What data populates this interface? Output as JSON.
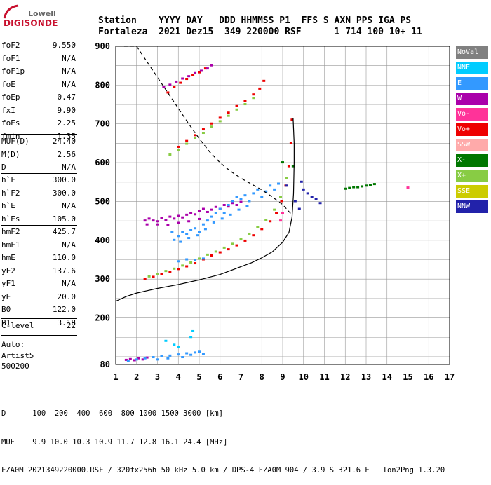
{
  "logo": {
    "line1": "Lowell",
    "line2": "DIGISONDE"
  },
  "header": {
    "line1": "Station    YYYY DAY   DDD HHMMSS P1  FFS S AXN PPS IGA PS",
    "line2": "Fortaleza  2021 Dez15  349 220000 RSF      1 714 100 10+ 11"
  },
  "params_group1": [
    {
      "label": "foF2",
      "value": "9.550"
    },
    {
      "label": "foF1",
      "value": "N/A"
    },
    {
      "label": "foF1p",
      "value": "N/A"
    },
    {
      "label": "foE",
      "value": "N/A"
    },
    {
      "label": "foEp",
      "value": "0.47"
    },
    {
      "label": "fxI",
      "value": "9.90"
    },
    {
      "label": "foEs",
      "value": "2.25"
    },
    {
      "label": "fmin",
      "value": "1.35"
    }
  ],
  "params_group2": [
    {
      "label": "MUF(D)",
      "value": "24.40"
    },
    {
      "label": "M(D)",
      "value": "2.56"
    },
    {
      "label": "D",
      "value": "N/A"
    }
  ],
  "params_group3": [
    {
      "label": "h`F",
      "value": "300.0"
    },
    {
      "label": "h`F2",
      "value": "300.0"
    },
    {
      "label": "h`E",
      "value": "N/A"
    },
    {
      "label": "h`Es",
      "value": "105.0"
    }
  ],
  "params_group4": [
    {
      "label": "hmF2",
      "value": "425.7"
    },
    {
      "label": "hmF1",
      "value": "N/A"
    },
    {
      "label": "hmE",
      "value": "110.0"
    },
    {
      "label": "yF2",
      "value": "137.6"
    },
    {
      "label": "yF1",
      "value": "N/A"
    },
    {
      "label": "yE",
      "value": "20.0"
    },
    {
      "label": "B0",
      "value": "122.0"
    },
    {
      "label": "B1",
      "value": "3.18"
    }
  ],
  "params_group5": [
    {
      "label": "C-level",
      "value": "22"
    }
  ],
  "auto": {
    "line1": "Auto:",
    "line2": "Artist5",
    "line3": "500200"
  },
  "legend": [
    {
      "label": "NoVal",
      "color": "#808080"
    },
    {
      "label": "NNE",
      "color": "#00ccff"
    },
    {
      "label": "E",
      "color": "#3399ff"
    },
    {
      "label": "W",
      "color": "#aa00aa"
    },
    {
      "label": "Vo-",
      "color": "#ff3399"
    },
    {
      "label": "Vo+",
      "color": "#ee0000"
    },
    {
      "label": "SSW",
      "color": "#ffaaaa"
    },
    {
      "label": "X-",
      "color": "#007700"
    },
    {
      "label": "X+",
      "color": "#88cc44"
    },
    {
      "label": "SSE",
      "color": "#cccc00"
    },
    {
      "label": "NNW",
      "color": "#2222aa"
    }
  ],
  "footer": {
    "line1": "D      100  200  400  600  800 1000 1500 3000 [km]",
    "line2": "MUF    9.9 10.0 10.3 10.9 11.7 12.8 16.1 24.4 [MHz]",
    "line3": "FZA0M_2021349220000.RSF / 320fx256h 50 kHz 5.0 km / DPS-4 FZA0M 904 / 3.9 S 321.6 E   Ion2Png 1.3.20"
  },
  "chart_data": {
    "type": "scatter",
    "xlim": [
      1,
      17
    ],
    "ylim": [
      80,
      900
    ],
    "x_ticks": [
      "1",
      "2",
      "3",
      "4",
      "5",
      "6",
      "7",
      "8",
      "9",
      "10",
      "11",
      "12",
      "13",
      "14",
      "15",
      "16",
      "17"
    ],
    "y_ticks": [
      "80",
      "200",
      "300",
      "400",
      "500",
      "600",
      "700",
      "800",
      "900"
    ],
    "grid": true,
    "series": [
      {
        "name": "Vo+",
        "color": "#ee0000",
        "points": [
          [
            2.4,
            300
          ],
          [
            2.8,
            305
          ],
          [
            3.2,
            312
          ],
          [
            3.6,
            318
          ],
          [
            4.0,
            325
          ],
          [
            4.4,
            332
          ],
          [
            4.8,
            340
          ],
          [
            5.2,
            350
          ],
          [
            5.6,
            360
          ],
          [
            6.0,
            368
          ],
          [
            6.4,
            376
          ],
          [
            6.8,
            386
          ],
          [
            7.2,
            398
          ],
          [
            7.6,
            412
          ],
          [
            8.0,
            428
          ],
          [
            8.4,
            448
          ],
          [
            8.7,
            470
          ],
          [
            8.95,
            500
          ],
          [
            9.15,
            540
          ],
          [
            9.3,
            590
          ],
          [
            9.4,
            650
          ],
          [
            9.45,
            710
          ],
          [
            3.5,
            780
          ],
          [
            3.8,
            795
          ],
          [
            4.1,
            805
          ],
          [
            4.4,
            815
          ],
          [
            4.7,
            825
          ],
          [
            5.0,
            832
          ],
          [
            5.3,
            842
          ],
          [
            4.0,
            640
          ],
          [
            4.4,
            655
          ],
          [
            4.8,
            670
          ],
          [
            5.2,
            685
          ],
          [
            5.6,
            700
          ],
          [
            6.0,
            715
          ],
          [
            6.4,
            728
          ],
          [
            6.8,
            745
          ],
          [
            7.2,
            758
          ],
          [
            7.6,
            775
          ],
          [
            7.9,
            790
          ],
          [
            8.1,
            810
          ]
        ]
      },
      {
        "name": "X+",
        "color": "#88cc44",
        "points": [
          [
            2.6,
            306
          ],
          [
            3.0,
            312
          ],
          [
            3.4,
            320
          ],
          [
            3.8,
            326
          ],
          [
            4.2,
            334
          ],
          [
            4.6,
            342
          ],
          [
            5.0,
            352
          ],
          [
            5.4,
            362
          ],
          [
            5.8,
            370
          ],
          [
            6.2,
            380
          ],
          [
            6.6,
            390
          ],
          [
            7.0,
            402
          ],
          [
            7.4,
            416
          ],
          [
            7.8,
            434
          ],
          [
            8.2,
            452
          ],
          [
            8.6,
            478
          ],
          [
            8.9,
            510
          ],
          [
            9.2,
            560
          ],
          [
            3.6,
            620
          ],
          [
            4.0,
            632
          ],
          [
            4.4,
            648
          ],
          [
            4.8,
            662
          ],
          [
            5.2,
            676
          ],
          [
            5.6,
            692
          ],
          [
            6.0,
            706
          ],
          [
            6.4,
            720
          ],
          [
            6.8,
            736
          ],
          [
            7.2,
            750
          ],
          [
            7.6,
            766
          ]
        ]
      },
      {
        "name": "W",
        "color": "#aa00aa",
        "points": [
          [
            3.3,
            795
          ],
          [
            3.6,
            800
          ],
          [
            3.9,
            808
          ],
          [
            4.2,
            816
          ],
          [
            4.5,
            822
          ],
          [
            4.8,
            830
          ],
          [
            5.1,
            836
          ],
          [
            5.4,
            842
          ],
          [
            5.6,
            850
          ],
          [
            2.4,
            450
          ],
          [
            2.6,
            455
          ],
          [
            2.8,
            450
          ],
          [
            3.0,
            448
          ],
          [
            3.2,
            456
          ],
          [
            3.4,
            452
          ],
          [
            3.6,
            460
          ],
          [
            3.8,
            455
          ],
          [
            4.0,
            462
          ],
          [
            4.2,
            458
          ],
          [
            4.4,
            465
          ],
          [
            4.6,
            470
          ],
          [
            4.8,
            466
          ],
          [
            5.0,
            475
          ],
          [
            5.2,
            480
          ],
          [
            5.4,
            472
          ],
          [
            5.6,
            478
          ],
          [
            5.8,
            485
          ],
          [
            6.0,
            480
          ],
          [
            6.2,
            490
          ],
          [
            6.4,
            486
          ],
          [
            6.6,
            495
          ],
          [
            6.8,
            490
          ],
          [
            7.0,
            498
          ],
          [
            2.5,
            440
          ],
          [
            3.0,
            440
          ],
          [
            3.5,
            438
          ],
          [
            4.0,
            444
          ],
          [
            4.5,
            448
          ],
          [
            5.0,
            454
          ],
          [
            1.5,
            91
          ],
          [
            1.7,
            93
          ],
          [
            1.9,
            90
          ],
          [
            2.1,
            95
          ],
          [
            2.3,
            92
          ],
          [
            2.5,
            97
          ]
        ]
      },
      {
        "name": "E",
        "color": "#3399ff",
        "points": [
          [
            3.8,
            400
          ],
          [
            4.0,
            410
          ],
          [
            4.2,
            420
          ],
          [
            4.4,
            415
          ],
          [
            4.6,
            425
          ],
          [
            4.8,
            430
          ],
          [
            5.0,
            420
          ],
          [
            5.2,
            440
          ],
          [
            5.4,
            450
          ],
          [
            5.6,
            460
          ],
          [
            5.8,
            470
          ],
          [
            6.0,
            480
          ],
          [
            6.2,
            470
          ],
          [
            6.4,
            490
          ],
          [
            6.6,
            500
          ],
          [
            6.8,
            510
          ],
          [
            7.0,
            505
          ],
          [
            7.2,
            515
          ],
          [
            7.4,
            500
          ],
          [
            7.6,
            520
          ],
          [
            7.8,
            530
          ],
          [
            8.0,
            510
          ],
          [
            8.2,
            525
          ],
          [
            8.4,
            540
          ],
          [
            8.6,
            530
          ],
          [
            8.8,
            545
          ],
          [
            3.7,
            420
          ],
          [
            4.1,
            395
          ],
          [
            4.5,
            405
          ],
          [
            4.9,
            412
          ],
          [
            5.3,
            428
          ],
          [
            5.7,
            445
          ],
          [
            6.1,
            455
          ],
          [
            6.5,
            465
          ],
          [
            6.9,
            478
          ],
          [
            7.3,
            488
          ],
          [
            4.0,
            345
          ],
          [
            4.4,
            350
          ],
          [
            4.8,
            348
          ],
          [
            5.2,
            352
          ],
          [
            1.6,
            88
          ],
          [
            2.0,
            92
          ],
          [
            2.4,
            95
          ],
          [
            2.8,
            98
          ],
          [
            3.2,
            100
          ],
          [
            3.6,
            102
          ],
          [
            4.0,
            105
          ],
          [
            4.4,
            108
          ],
          [
            4.8,
            110
          ],
          [
            5.0,
            112
          ],
          [
            3.0,
            92
          ],
          [
            3.5,
            95
          ],
          [
            4.2,
            98
          ],
          [
            4.6,
            104
          ],
          [
            5.2,
            106
          ]
        ]
      },
      {
        "name": "NNE",
        "color": "#00ccff",
        "points": [
          [
            4.6,
            150
          ],
          [
            4.7,
            165
          ],
          [
            3.4,
            140
          ],
          [
            3.8,
            130
          ],
          [
            4.0,
            125
          ]
        ]
      },
      {
        "name": "NNW",
        "color": "#2222aa",
        "points": [
          [
            9.2,
            540
          ],
          [
            9.6,
            500
          ],
          [
            9.8,
            480
          ],
          [
            10.0,
            530
          ],
          [
            10.2,
            520
          ],
          [
            10.4,
            510
          ],
          [
            10.6,
            505
          ],
          [
            10.8,
            495
          ],
          [
            9.9,
            550
          ]
        ]
      },
      {
        "name": "X-",
        "color": "#007700",
        "points": [
          [
            12.0,
            532
          ],
          [
            12.2,
            534
          ],
          [
            12.4,
            536
          ],
          [
            12.6,
            536
          ],
          [
            12.8,
            538
          ],
          [
            13.0,
            540
          ],
          [
            13.2,
            542
          ],
          [
            13.4,
            544
          ],
          [
            9.0,
            600
          ],
          [
            9.5,
            590
          ]
        ]
      },
      {
        "name": "Vo-",
        "color": "#ff3399",
        "points": [
          [
            15.0,
            535
          ],
          [
            8.9,
            450
          ],
          [
            9.0,
            470
          ]
        ]
      }
    ],
    "curves": [
      {
        "name": "profile",
        "style": "solid",
        "points": [
          [
            1.0,
            243
          ],
          [
            1.5,
            255
          ],
          [
            2.0,
            264
          ],
          [
            2.5,
            270
          ],
          [
            3.0,
            276
          ],
          [
            3.5,
            281
          ],
          [
            4.0,
            286
          ],
          [
            4.5,
            292
          ],
          [
            5.0,
            298
          ],
          [
            5.5,
            305
          ],
          [
            6.0,
            312
          ],
          [
            6.5,
            322
          ],
          [
            7.0,
            332
          ],
          [
            7.5,
            342
          ],
          [
            8.0,
            355
          ],
          [
            8.5,
            370
          ],
          [
            9.0,
            395
          ],
          [
            9.3,
            420
          ],
          [
            9.45,
            460
          ],
          [
            9.52,
            520
          ],
          [
            9.55,
            600
          ],
          [
            9.55,
            650
          ],
          [
            9.5,
            715
          ]
        ]
      },
      {
        "name": "virtual",
        "style": "dashed",
        "points": [
          [
            1.4,
            900
          ],
          [
            2.0,
            900
          ],
          [
            2.5,
            860
          ],
          [
            3.0,
            820
          ],
          [
            3.5,
            780
          ],
          [
            4.0,
            740
          ],
          [
            4.5,
            700
          ],
          [
            5.0,
            662
          ],
          [
            5.5,
            628
          ],
          [
            6.0,
            600
          ],
          [
            6.5,
            578
          ],
          [
            7.0,
            560
          ],
          [
            7.5,
            545
          ],
          [
            8.0,
            530
          ],
          [
            8.5,
            512
          ],
          [
            9.0,
            492
          ],
          [
            9.4,
            468
          ]
        ]
      }
    ]
  }
}
